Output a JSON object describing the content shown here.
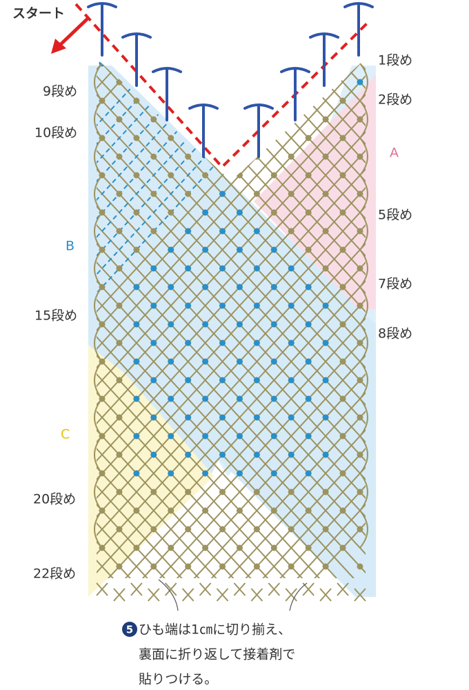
{
  "start_label": "スタート",
  "labels": [
    "1段め",
    "2段め",
    "A",
    "5段め",
    "7段め",
    "8段め",
    "9段め",
    "10段め",
    "B",
    "15段め",
    "C",
    "20段め",
    "22段め"
  ],
  "note": {
    "number": "5",
    "lines": [
      "ひも端は1㎝に切り揃え、",
      "裏面に折り返して接着剤で",
      "貼りつける。"
    ]
  }
}
